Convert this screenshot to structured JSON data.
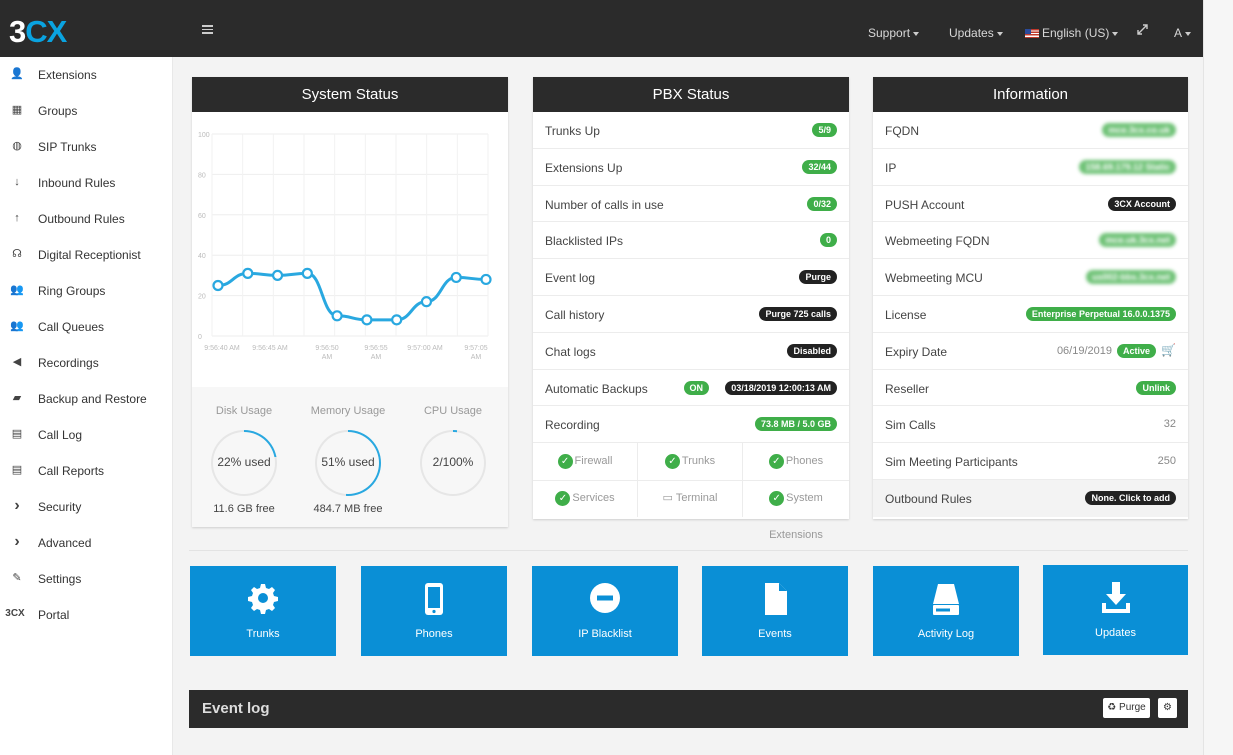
{
  "app": {
    "logo_main": "3",
    "logo_accent": "CX"
  },
  "topnav": {
    "support": "Support",
    "updates": "Updates",
    "language": "English (US)",
    "user": "A"
  },
  "sidebar": [
    "Extensions",
    "Groups",
    "SIP Trunks",
    "Inbound Rules",
    "Outbound Rules",
    "Digital Receptionist",
    "Ring Groups",
    "Call Queues",
    "Recordings",
    "Backup and Restore",
    "Call Log",
    "Call Reports",
    "Security",
    "Advanced",
    "Settings",
    "Portal"
  ],
  "sidebar_portal_icon": "3CX",
  "system_status": {
    "title": "System Status",
    "chart_data": {
      "type": "line",
      "y_ticks": [
        "100",
        "80",
        "60",
        "40",
        "20",
        "0"
      ],
      "ylim": [
        0,
        100
      ],
      "x_ticks": [
        "9:56:40 AM",
        "9:56:45 AM",
        "9:56:50 AM",
        "9:56:55 AM",
        "9:57:00 AM",
        "9:57:05 AM"
      ],
      "values": [
        25,
        31,
        30,
        31,
        10,
        8,
        8,
        17,
        29,
        28
      ],
      "color": "#29a8e0"
    },
    "gauges": [
      {
        "title": "Disk Usage",
        "value": "22% used",
        "free": "11.6 GB free",
        "pct": 22
      },
      {
        "title": "Memory Usage",
        "value": "51% used",
        "free": "484.7 MB free",
        "pct": 51
      },
      {
        "title": "CPU Usage",
        "value": "2/100%",
        "free": "",
        "pct": 2
      }
    ]
  },
  "pbx_status": {
    "title": "PBX Status",
    "rows": [
      {
        "k": "Trunks Up",
        "v": "5/9"
      },
      {
        "k": "Extensions Up",
        "v": "32/44"
      },
      {
        "k": "Number of calls in use",
        "v": "0/32"
      },
      {
        "k": "Blacklisted IPs",
        "v": "0"
      },
      {
        "k": "Event log",
        "v": "Purge"
      },
      {
        "k": "Call history",
        "v": "Purge 725 calls"
      },
      {
        "k": "Chat logs",
        "v": "Disabled"
      },
      {
        "k": "Automatic Backups",
        "v": "03/18/2019 12:00:13 AM",
        "on": "ON"
      },
      {
        "k": "Recording",
        "v": "73.8 MB / 5.0 GB"
      }
    ],
    "services": [
      "Firewall",
      "Trunks",
      "Phones",
      "Services",
      "Terminal",
      "System Extensions"
    ]
  },
  "information": {
    "title": "Information",
    "rows": [
      {
        "k": "FQDN",
        "v": "mce.3cx.co.uk"
      },
      {
        "k": "IP",
        "v": "158.69.179.12 Static"
      },
      {
        "k": "PUSH Account",
        "v": "3CX Account"
      },
      {
        "k": "Webmeeting FQDN",
        "v": "mce.uk.3cx.net"
      },
      {
        "k": "Webmeeting MCU",
        "v": "us002-bbs.3cx.net"
      },
      {
        "k": "License",
        "v": "Enterprise Perpetual 16.0.0.1375"
      },
      {
        "k": "Expiry Date",
        "date": "06/19/2019",
        "v": "Active"
      },
      {
        "k": "Reseller",
        "v": "Unlink"
      },
      {
        "k": "Sim Calls",
        "v": "32"
      },
      {
        "k": "Sim Meeting Participants",
        "v": "250"
      },
      {
        "k": "Outbound Rules",
        "v": "None. Click to add"
      }
    ]
  },
  "tiles": [
    "Trunks",
    "Phones",
    "IP Blacklist",
    "Events",
    "Activity Log",
    "Updates"
  ],
  "event_log": {
    "title": "Event log",
    "purge": "Purge"
  },
  "icons": {
    "menu": "hamburger-icon",
    "expand": "expand-icon",
    "cart": "cart-icon",
    "settings": "gear-icon"
  }
}
